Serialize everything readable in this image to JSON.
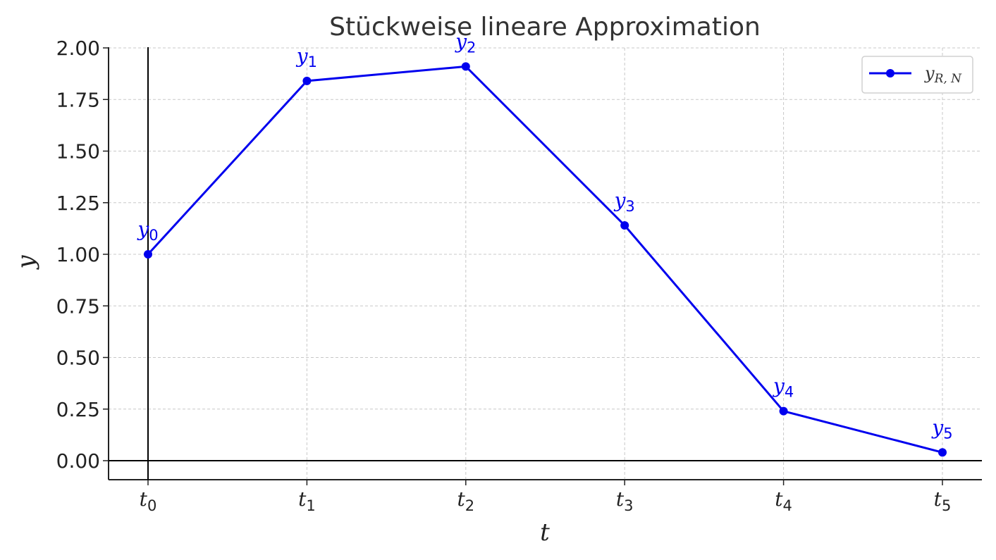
{
  "chart_data": {
    "type": "line",
    "title": "Stückweise lineare Approximation",
    "xlabel": "t",
    "ylabel": "y",
    "x_ticks": [
      {
        "base": "t",
        "sub": "0"
      },
      {
        "base": "t",
        "sub": "1"
      },
      {
        "base": "t",
        "sub": "2"
      },
      {
        "base": "t",
        "sub": "3"
      },
      {
        "base": "t",
        "sub": "4"
      },
      {
        "base": "t",
        "sub": "5"
      }
    ],
    "y_ticks": [
      "0.00",
      "0.25",
      "0.50",
      "0.75",
      "1.00",
      "1.25",
      "1.50",
      "1.75",
      "2.00"
    ],
    "ylim": [
      -0.1,
      2.0
    ],
    "grid": true,
    "legend_position": "top-right",
    "series": [
      {
        "name": {
          "base": "y",
          "sub": "R, N"
        },
        "color": "#0000ee",
        "x": [
          0,
          1,
          2,
          3,
          4,
          5
        ],
        "values": [
          1.0,
          1.84,
          1.91,
          1.14,
          0.24,
          0.04
        ],
        "point_labels": [
          {
            "base": "y",
            "sub": "0"
          },
          {
            "base": "y",
            "sub": "1"
          },
          {
            "base": "y",
            "sub": "2"
          },
          {
            "base": "y",
            "sub": "3"
          },
          {
            "base": "y",
            "sub": "4"
          },
          {
            "base": "y",
            "sub": "5"
          }
        ]
      }
    ]
  }
}
